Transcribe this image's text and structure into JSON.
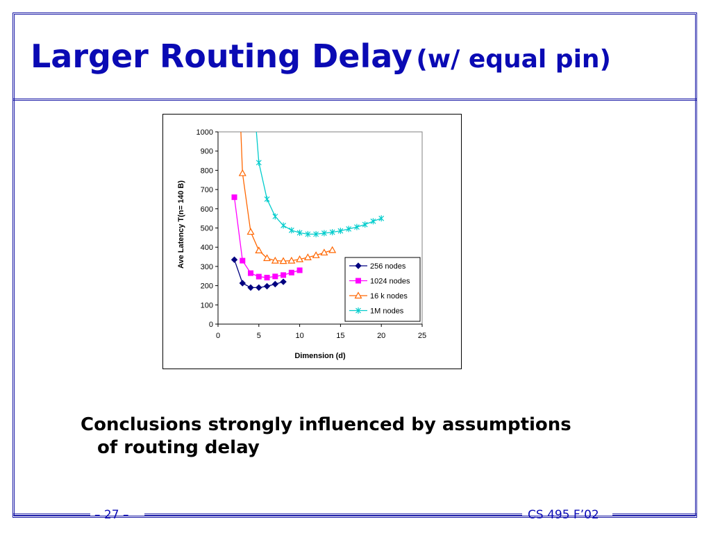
{
  "slide": {
    "title_main": "Larger Routing Delay",
    "title_sub": "(w/ equal pin)",
    "conclusion_line1": "Conclusions strongly influenced by assumptions",
    "conclusion_line2": "of routing delay",
    "footer_left": "– 27 –",
    "footer_right": "CS 495 F’02",
    "accent_color": "#0a0ab4"
  },
  "chart_data": {
    "type": "line",
    "title": "",
    "xlabel": "Dimension (d)",
    "ylabel": "Ave Latency T(n= 140 B)",
    "xlim": [
      0,
      25
    ],
    "ylim": [
      0,
      1000
    ],
    "xticks": [
      0,
      5,
      10,
      15,
      20,
      25
    ],
    "yticks": [
      0,
      100,
      200,
      300,
      400,
      500,
      600,
      700,
      800,
      900,
      1000
    ],
    "grid": false,
    "legend_position": "bottom-right",
    "series": [
      {
        "name": "256 nodes",
        "color": "#000080",
        "marker": "diamond",
        "x": [
          2,
          3,
          4,
          5,
          6,
          7,
          8
        ],
        "y": [
          335,
          213,
          190,
          190,
          197,
          208,
          220
        ]
      },
      {
        "name": "1024 nodes",
        "color": "#ff00ff",
        "marker": "square",
        "x": [
          2,
          3,
          4,
          5,
          6,
          7,
          8,
          9,
          10
        ],
        "y": [
          660,
          330,
          265,
          247,
          242,
          248,
          255,
          268,
          280
        ]
      },
      {
        "name": "16 k nodes",
        "color": "#ff6600",
        "marker": "triangle",
        "x": [
          2.8,
          3,
          4,
          5,
          6,
          7,
          8,
          9,
          10,
          11,
          12,
          13,
          14
        ],
        "y": [
          1000,
          785,
          480,
          383,
          343,
          330,
          328,
          330,
          337,
          347,
          358,
          372,
          385
        ]
      },
      {
        "name": "1M nodes",
        "color": "#00cccc",
        "marker": "x",
        "x": [
          4.7,
          5,
          6,
          7,
          8,
          9,
          10,
          11,
          12,
          13,
          14,
          15,
          16,
          17,
          18,
          19,
          20
        ],
        "y": [
          1000,
          840,
          650,
          560,
          513,
          488,
          475,
          468,
          468,
          473,
          478,
          485,
          495,
          505,
          518,
          535,
          550
        ]
      }
    ]
  }
}
